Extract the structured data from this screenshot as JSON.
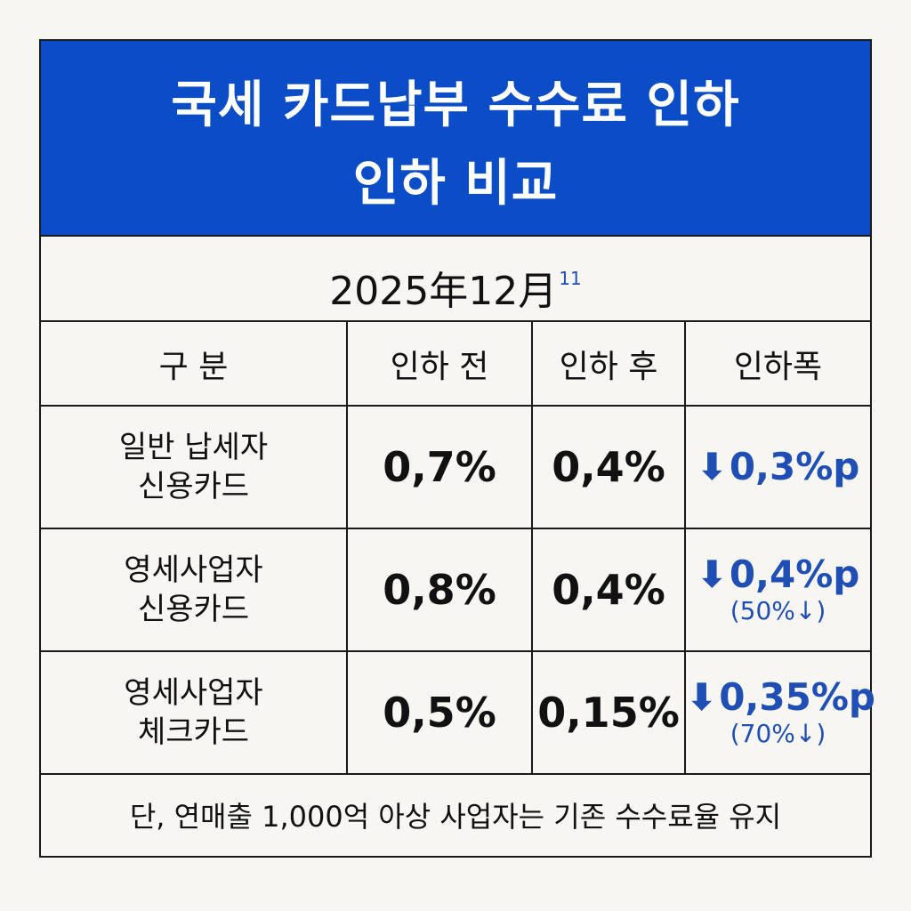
{
  "title": {
    "line1": "국세 카드납부 수수료 인하",
    "line2": "인하 비교"
  },
  "date": {
    "text": "2025年12月",
    "superscript": "11"
  },
  "table": {
    "headers": [
      "구 분",
      "인하 전",
      "인하 후",
      "인하폭"
    ],
    "rows": [
      {
        "category_line1": "일반 납세자",
        "category_line2": "신용카드",
        "before": "0,7%",
        "after": "0,4%",
        "cut": "0,3%p",
        "cut_note": ""
      },
      {
        "category_line1": "영세사업자",
        "category_line2": "신용카드",
        "before": "0,8%",
        "after": "0,4%",
        "cut": "0,4%p",
        "cut_note": "(50%↓)"
      },
      {
        "category_line1": "영세사업자",
        "category_line2": "체크카드",
        "before": "0,5%",
        "after": "0,15%",
        "cut": "0,35%p",
        "cut_note": "(70%↓)"
      }
    ],
    "arrow_glyph": "⬇"
  },
  "note": "단, 연매출 1,000억 아상 사업자는 기존 수수료율 유지",
  "colors": {
    "header_bg": "#0b4dc6",
    "accent_blue": "#1f4fb5",
    "background": "#f8f6f2"
  }
}
